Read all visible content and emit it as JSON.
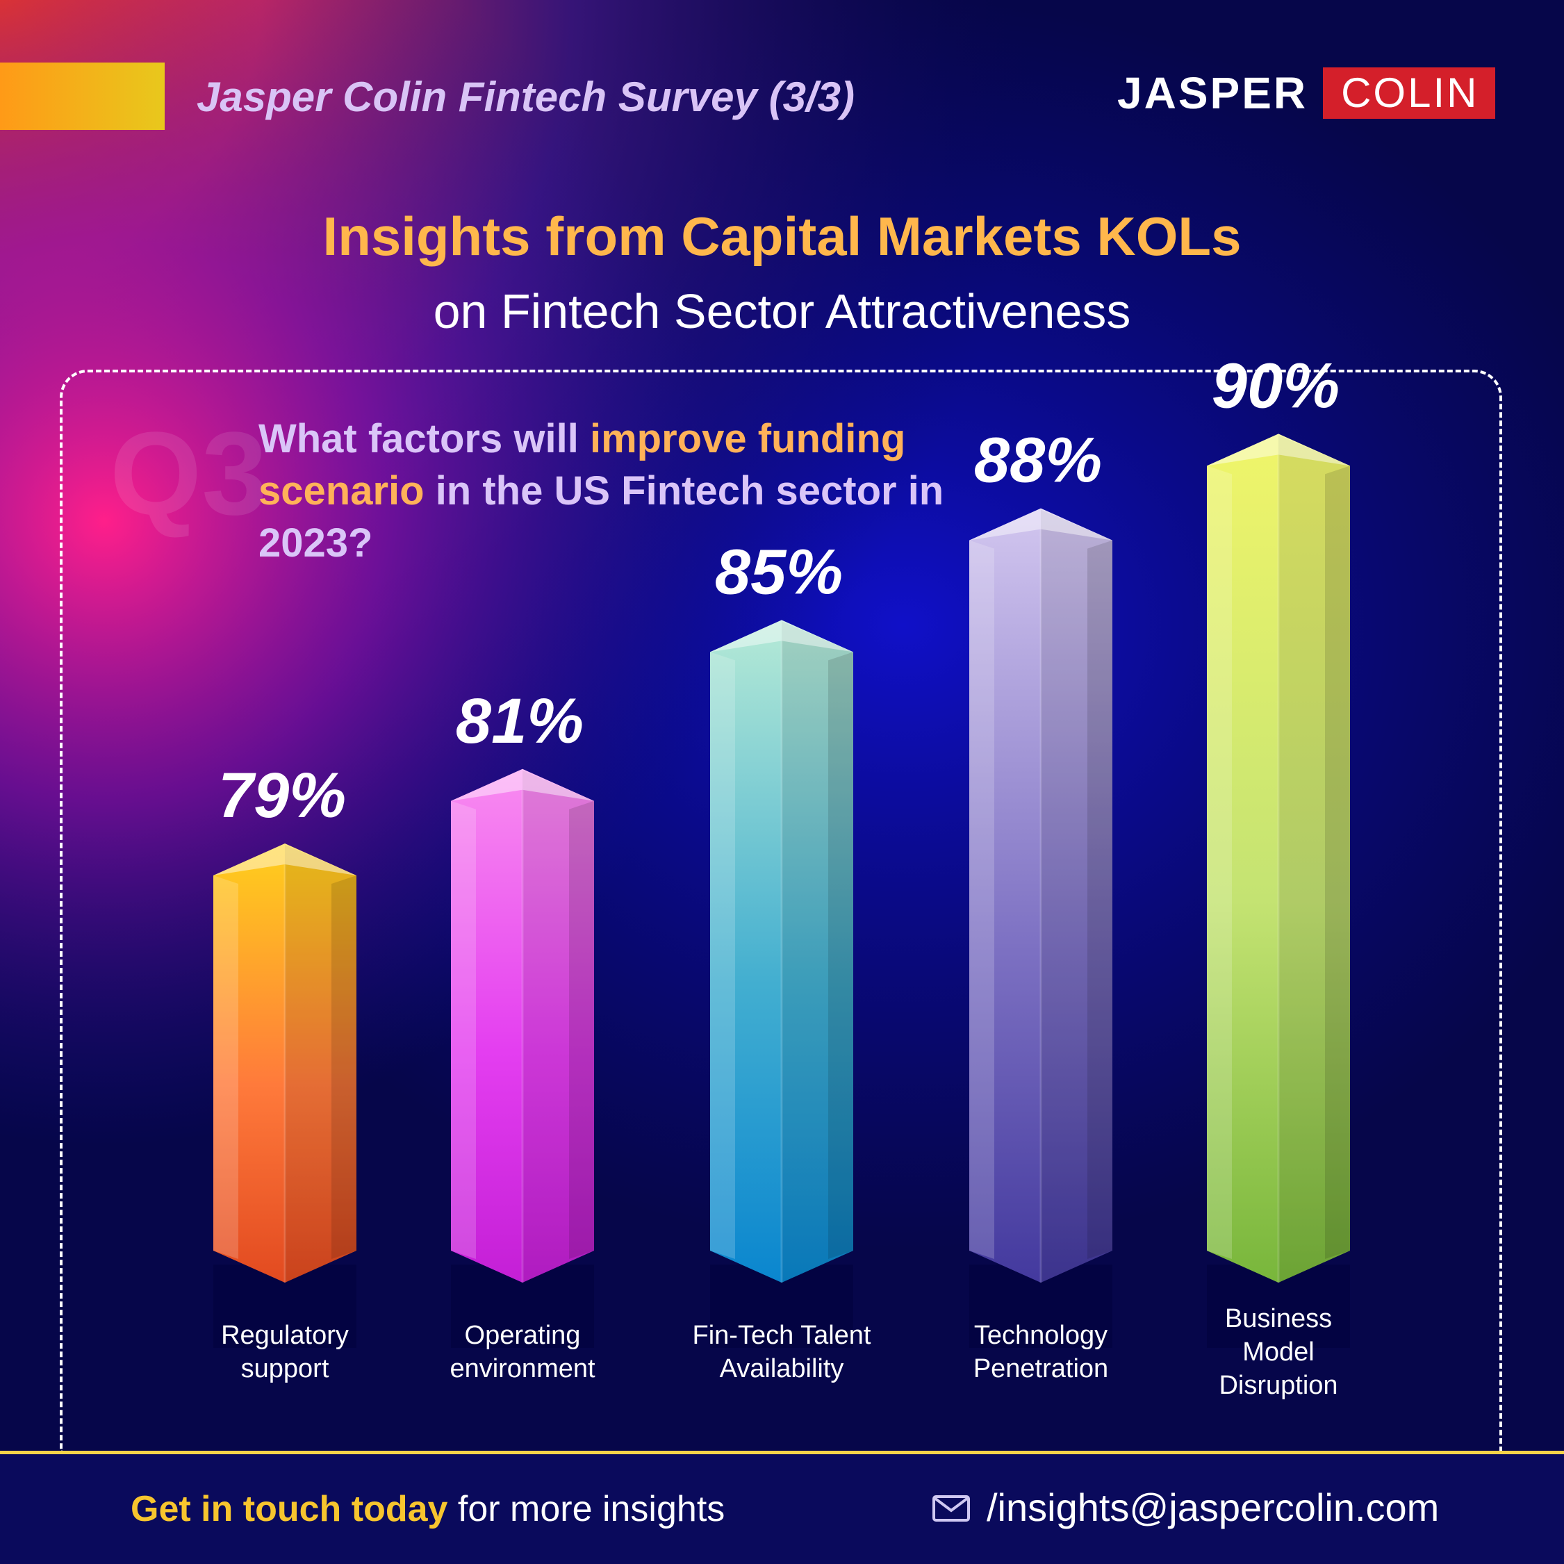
{
  "header": {
    "survey_title": "Jasper Colin Fintech Survey (3/3)",
    "logo_left": "JASPER",
    "logo_right": "COLIN"
  },
  "title": "Insights from Capital Markets KOLs",
  "subtitle": "on Fintech Sector Attractiveness",
  "question": {
    "number": "Q3",
    "text_start": "What factors will ",
    "text_highlight": "improve funding scenario",
    "text_end": " in the US Fintech sector in 2023?"
  },
  "chart_data": {
    "type": "bar",
    "categories": [
      "Regulatory support",
      "Operating environment",
      "Fin-Tech Talent Availability",
      "Technology Penetration",
      "Business Model Disruption"
    ],
    "values": [
      79,
      81,
      85,
      88,
      90
    ],
    "value_labels": [
      "79%",
      "81%",
      "85%",
      "88%",
      "90%"
    ],
    "unit": "%",
    "colors": [
      [
        "#ffd01c",
        "#ff7a3b",
        "#e24a20"
      ],
      [
        "#f98cf0",
        "#e43ef0",
        "#c41fd6"
      ],
      [
        "#b6ead6",
        "#42aed0",
        "#0a86cf"
      ],
      [
        "#d2c6ef",
        "#7f73c4",
        "#43399e"
      ],
      [
        "#f0f56a",
        "#c4e372",
        "#78b63b"
      ]
    ]
  },
  "footer": {
    "cta_strong": "Get in touch today",
    "cta_rest": " for more insights",
    "email": "/insights@jaspercolin.com",
    "mail_icon": "envelope-icon"
  }
}
